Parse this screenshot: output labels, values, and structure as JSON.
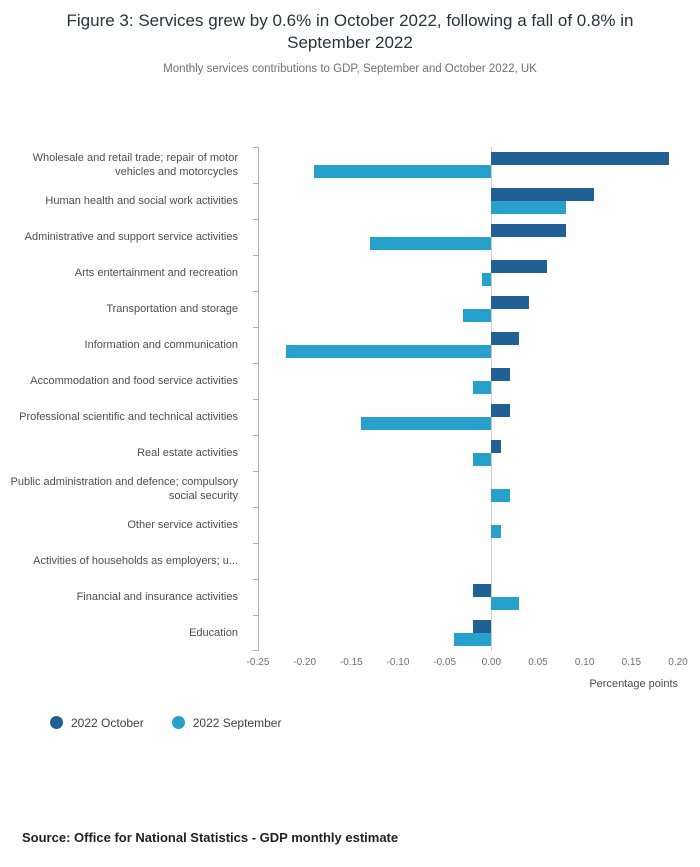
{
  "page": {
    "title": "Figure 3: Services grew by 0.6% in October 2022, following a fall of 0.8% in September 2022",
    "subtitle": "Monthly services contributions to GDP, September and October 2022, UK",
    "source": "Source: Office for National Statistics - GDP monthly estimate"
  },
  "colors": {
    "october": "#206095",
    "september": "#27A0CC",
    "axis": "#b0b0b0",
    "zero_line": "#cccccc"
  },
  "legend": [
    {
      "label": "2022 October",
      "color_key": "october"
    },
    {
      "label": "2022 September",
      "color_key": "september"
    }
  ],
  "chart_data": {
    "type": "bar",
    "orientation": "horizontal",
    "title": "Figure 3: Services grew by 0.6% in October 2022, following a fall of 0.8% in September 2022",
    "subtitle": "Monthly services contributions to GDP, September and October 2022, UK",
    "xlabel": "Percentage points",
    "ylabel": "",
    "xlim": [
      -0.25,
      0.2
    ],
    "x_ticks": [
      -0.25,
      -0.2,
      -0.15,
      -0.1,
      -0.05,
      0,
      0.05,
      0.1,
      0.15,
      0.2
    ],
    "x_tick_labels": [
      "-0.25",
      "-0.20",
      "-0.15",
      "-0.10",
      "-0.05",
      "0.00",
      "0.05",
      "0.10",
      "0.15",
      "0.20"
    ],
    "grid": false,
    "legend_position": "bottom-left",
    "categories": [
      "Wholesale and retail trade; repair of motor vehicles and motorcycles",
      "Human health and social work activities",
      "Administrative and support service activities",
      "Arts entertainment and recreation",
      "Transportation and storage",
      "Information and communication",
      "Accommodation and food service activities",
      "Professional scientific and technical activities",
      "Real estate activities",
      "Public administration and defence; compulsory social security",
      "Other service activities",
      "Activities of households as employers; u...",
      "Financial and insurance activities",
      "Education"
    ],
    "series": [
      {
        "name": "2022 October",
        "values": [
          0.19,
          0.11,
          0.08,
          0.06,
          0.04,
          0.03,
          0.02,
          0.02,
          0.01,
          0,
          0,
          0,
          -0.02,
          -0.02
        ]
      },
      {
        "name": "2022 September",
        "values": [
          -0.19,
          0.08,
          -0.13,
          -0.01,
          -0.03,
          -0.22,
          -0.02,
          -0.14,
          -0.02,
          0.02,
          0.01,
          0,
          0.03,
          -0.04
        ]
      }
    ]
  }
}
